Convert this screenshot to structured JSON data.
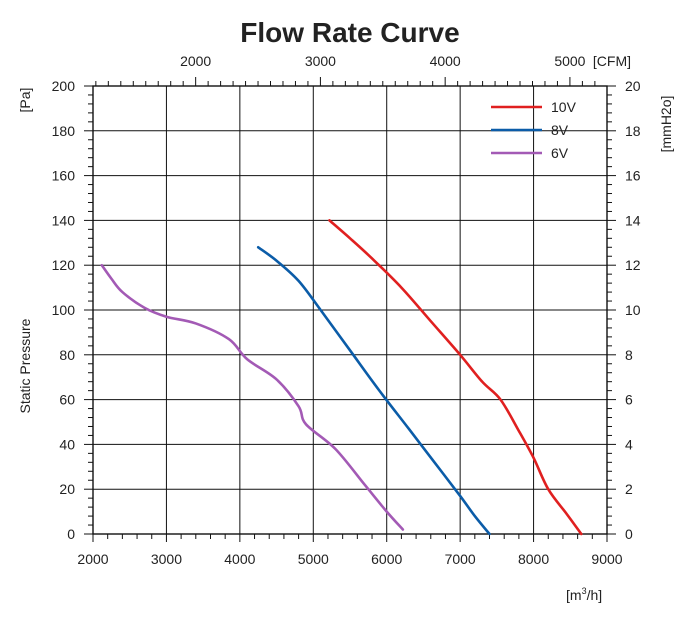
{
  "chart_data": {
    "type": "line",
    "title": "Flow Rate Curve",
    "xlabel": "[m³/h]",
    "x_unit_base": "[m",
    "x_unit_sup": "3",
    "x_unit_end": "/h]",
    "ylabel": "Static Pressure",
    "yunit_left": "[Pa]",
    "yunit_right": "[mmH2o]",
    "xunit_top": "[CFM]",
    "xlim": [
      2000,
      9000
    ],
    "ylim": [
      0,
      200
    ],
    "x_ticks": [
      "2000",
      "3000",
      "4000",
      "5000",
      "6000",
      "7000",
      "8000",
      "9000"
    ],
    "y_ticks": [
      "0",
      "20",
      "40",
      "60",
      "80",
      "100",
      "120",
      "140",
      "160",
      "180",
      "200"
    ],
    "top_ticks": [
      "2000",
      "3000",
      "4000",
      "5000"
    ],
    "top_tick_values": [
      2000,
      3000,
      4000,
      5000
    ],
    "cfm_to_m3h": 1.699,
    "right_ticks": [
      "0",
      "2",
      "4",
      "6",
      "8",
      "10",
      "12",
      "14",
      "16",
      "18",
      "20"
    ],
    "grid": true,
    "legend_position": "top-right",
    "series": [
      {
        "name": "10V",
        "color": "#e02020",
        "x": [
          5220,
          5500,
          5800,
          6200,
          6600,
          7000,
          7300,
          7550,
          7800,
          8000,
          8200,
          8450,
          8650
        ],
        "y": [
          140,
          132,
          123,
          110,
          95,
          80,
          68,
          60,
          46,
          34,
          20,
          9,
          0
        ]
      },
      {
        "name": "8V",
        "color": "#0b5ca8",
        "x": [
          4250,
          4500,
          4800,
          5100,
          5500,
          5900,
          6300,
          6650,
          7000,
          7200,
          7400
        ],
        "y": [
          128,
          122,
          113,
          100,
          82,
          64,
          47,
          32,
          17,
          8,
          0
        ]
      },
      {
        "name": "6V",
        "color": "#a35ab5",
        "x": [
          2120,
          2250,
          2400,
          2700,
          3000,
          3400,
          3850,
          4100,
          4500,
          4800,
          4900,
          5300,
          5700,
          6000,
          6220
        ],
        "y": [
          120,
          114,
          108,
          101,
          97,
          94,
          87,
          78,
          69,
          57,
          49,
          38,
          22,
          10,
          2
        ]
      }
    ]
  }
}
